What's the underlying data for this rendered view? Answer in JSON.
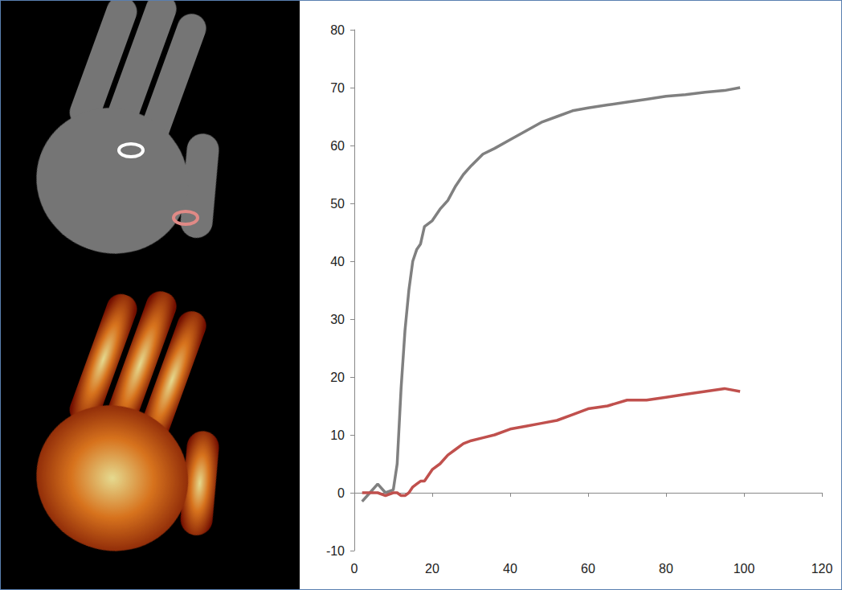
{
  "chart_data": {
    "type": "line",
    "x": [
      2,
      4,
      6,
      8,
      10,
      11,
      12,
      13,
      14,
      15,
      16,
      17,
      18,
      20,
      22,
      24,
      26,
      28,
      30,
      33,
      36,
      40,
      44,
      48,
      52,
      56,
      60,
      65,
      70,
      75,
      80,
      85,
      90,
      95,
      99
    ],
    "series": [
      {
        "color": "#808080",
        "values": [
          -1.5,
          0,
          1.5,
          0,
          0.5,
          5,
          18,
          28,
          35,
          40,
          42,
          43,
          46,
          47,
          49,
          50.5,
          53,
          55,
          56.5,
          58.5,
          59.5,
          61,
          62.5,
          64,
          65,
          66,
          66.5,
          67,
          67.5,
          68,
          68.5,
          68.8,
          69.2,
          69.5,
          70
        ]
      },
      {
        "color": "#c0504d",
        "values": [
          0,
          0,
          0,
          -0.5,
          0,
          0,
          -0.5,
          -0.5,
          0,
          1,
          1.5,
          2,
          2,
          4,
          5,
          6.5,
          7.5,
          8.5,
          9,
          9.5,
          10,
          11,
          11.5,
          12,
          12.5,
          13.5,
          14.5,
          15,
          16,
          16,
          16.5,
          17,
          17.5,
          18,
          17.5
        ]
      }
    ],
    "xlim": [
      0,
      120
    ],
    "xticks": [
      0,
      20,
      40,
      60,
      80,
      100,
      120
    ],
    "ylim": [
      -10,
      80
    ],
    "yticks": [
      -10,
      0,
      10,
      20,
      30,
      40,
      50,
      60,
      70,
      80
    ],
    "grid": false
  }
}
